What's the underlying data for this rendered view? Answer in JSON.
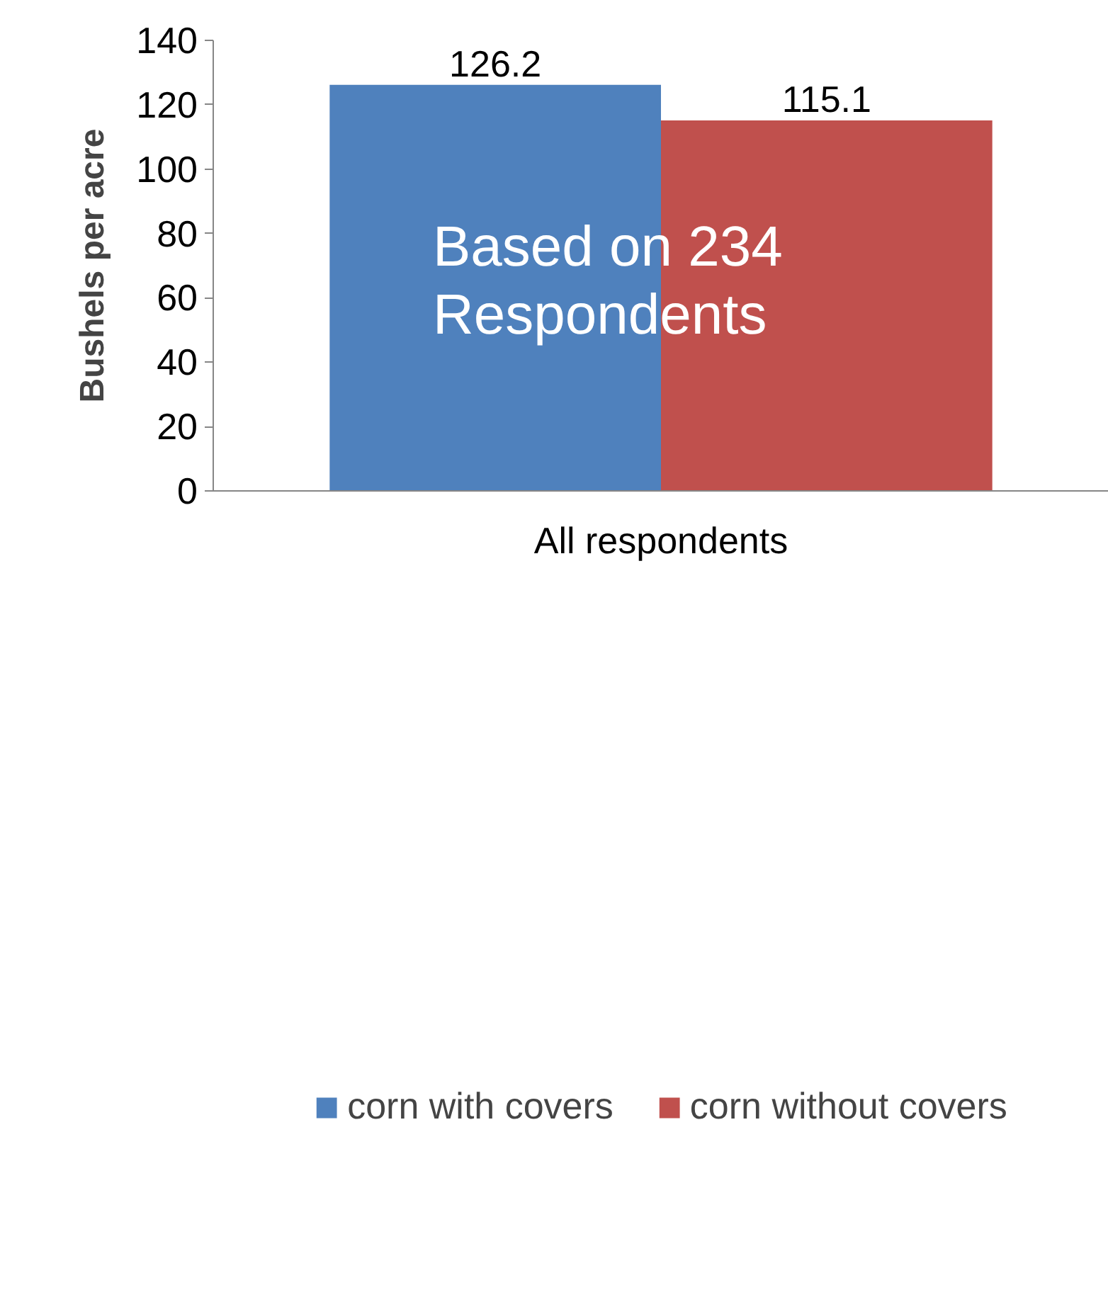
{
  "chart_data": {
    "type": "bar",
    "categories": [
      "All respondents"
    ],
    "ylabel": "Bushels per acre",
    "series": [
      {
        "name": "corn with covers",
        "color": "#4f81bd",
        "values": [
          126.2
        ]
      },
      {
        "name": "corn without covers",
        "color": "#c0504d",
        "values": [
          115.1
        ]
      }
    ],
    "ylim": [
      0,
      140
    ],
    "yticks": [
      0,
      20,
      40,
      60,
      80,
      100,
      120,
      140
    ],
    "grid": false,
    "legend": "bottom",
    "data_labels": true,
    "annotations": [
      "Based on 234 Respondents"
    ]
  }
}
